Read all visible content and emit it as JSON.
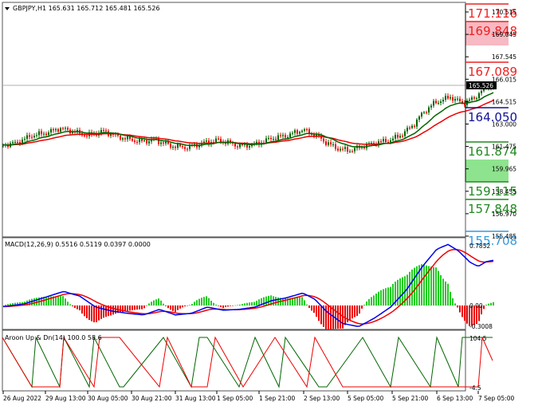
{
  "symbol_header": "GBPJPY,H1  165.631 165.712 165.481 165.526",
  "panes": {
    "macd": {
      "title": "MACD(12,26,9) 0.5516 0.5119 0.0397 0.0000"
    },
    "aroon": {
      "title": "Aroon Up & Dn(14) 100.0 58.6"
    }
  },
  "price_scale": [
    "170.515",
    "169.045",
    "167.545",
    "166.015",
    "164.515",
    "163.000",
    "161.475",
    "159.965",
    "158.455",
    "156.970",
    "155.485"
  ],
  "current_price": "165.526",
  "levels": [
    {
      "label": "171.116",
      "color": "#ee2222"
    },
    {
      "label": "169.848",
      "color": "#ee2222"
    },
    {
      "label": "167.089",
      "color": "#ee2222"
    },
    {
      "label": "164.050",
      "color": "#111199"
    },
    {
      "label": "161.874",
      "color": "#228822"
    },
    {
      "label": "159.115",
      "color": "#228822"
    },
    {
      "label": "157.848",
      "color": "#228822"
    },
    {
      "label": "155.708",
      "color": "#3399dd"
    }
  ],
  "macd_scale": [
    "0.7852",
    "0.00",
    "-0.3008"
  ],
  "aroon_scale": [
    "104.5",
    "-4.5"
  ],
  "time_axis": [
    "26 Aug 2022",
    "29 Aug 13:00",
    "30 Aug 05:00",
    "30 Aug 21:00",
    "31 Aug 13:00",
    "1 Sep 05:00",
    "1 Sep 21:00",
    "2 Sep 13:00",
    "5 Sep 05:00",
    "5 Sep 21:00",
    "6 Sep 13:00",
    "7 Sep 05:00"
  ],
  "colors": {
    "ma_fast": "#006600",
    "ma_slow": "#ee0000",
    "macd_line": "#0000ee",
    "signal_line": "#ee0000",
    "hist_pos": "#22cc22",
    "hist_neg": "#ee0000",
    "aroon_up": "#006600",
    "aroon_dn": "#ee0000",
    "candle_bull": "#006600",
    "candle_bear": "#ee0000"
  },
  "chart_data": {
    "type": "line",
    "x": [
      "26 Aug 2022",
      "29 Aug 13:00",
      "30 Aug 05:00",
      "30 Aug 21:00",
      "31 Aug 13:00",
      "1 Sep 05:00",
      "1 Sep 21:00",
      "2 Sep 13:00",
      "5 Sep 05:00",
      "5 Sep 21:00",
      "6 Sep 13:00",
      "7 Sep 05:00"
    ],
    "series": [
      {
        "name": "GBPJPY,H1",
        "values": [
          161.5,
          162.4,
          162.1,
          161.6,
          161.5,
          161.4,
          161.8,
          162.5,
          161.2,
          161.6,
          164.3,
          165.5
        ]
      }
    ],
    "ylim": [
      155.485,
      171.3
    ]
  }
}
